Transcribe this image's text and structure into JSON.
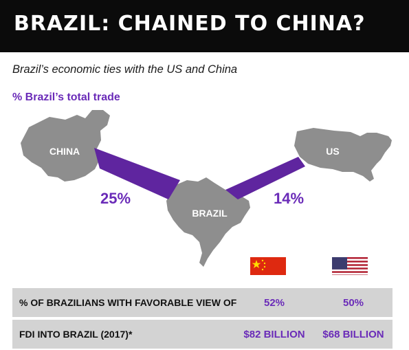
{
  "header": {
    "title": "BRAZIL: CHAINED TO CHINA?",
    "subtitle": "Brazil’s economic ties with the US and China",
    "section_label": "% Brazil’s total trade"
  },
  "map": {
    "labels": {
      "china": "CHINA",
      "brazil": "BRAZIL",
      "us": "US"
    },
    "land_color": "#8e8e8e",
    "link_color": "#5f259f",
    "accent_color": "#6a2bb8",
    "flags": {
      "china": "china-flag-icon",
      "us": "us-flag-icon"
    }
  },
  "chart_data": {
    "type": "table",
    "title": "BRAZIL: CHAINED TO CHINA?",
    "subtitle": "Brazil’s economic ties with the US and China",
    "trade_share": {
      "label": "% Brazil’s total trade",
      "series": [
        {
          "name": "China",
          "value": 25,
          "display": "25%"
        },
        {
          "name": "US",
          "value": 14,
          "display": "14%"
        }
      ]
    },
    "columns": [
      "China",
      "US"
    ],
    "rows": [
      {
        "label": "% OF BRAZILIANS WITH FAVORABLE VIEW OF",
        "values": [
          "52%",
          "50%"
        ]
      },
      {
        "label": "FDI INTO BRAZIL (2017)*",
        "values": [
          "$82 BILLION",
          "$68 BILLION"
        ]
      }
    ]
  }
}
